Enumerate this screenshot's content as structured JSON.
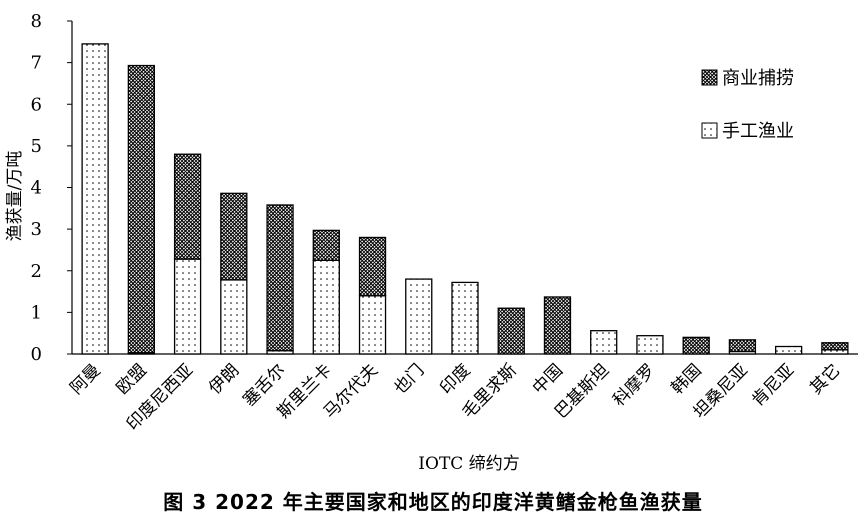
{
  "figure_caption": "图 3   2022 年主要国家和地区的印度洋黄鳍金枪鱼渔获量",
  "chart_data": {
    "type": "bar",
    "stacked": true,
    "title": "",
    "xlabel": "IOTC 缔约方",
    "ylabel": "渔获量/万吨",
    "ylim": [
      0,
      8
    ],
    "yticks": [
      0,
      1,
      2,
      3,
      4,
      5,
      6,
      7,
      8
    ],
    "grid": false,
    "legend_position": "right",
    "categories": [
      "阿曼",
      "欧盟",
      "印度尼西亚",
      "伊朗",
      "塞舌尔",
      "斯里兰卡",
      "马尔代夫",
      "也门",
      "印度",
      "毛里求斯",
      "中国",
      "巴基斯坦",
      "科摩罗",
      "韩国",
      "坦桑尼亚",
      "肯尼亚",
      "其它"
    ],
    "series": [
      {
        "name": "手工渔业",
        "pattern": "dots",
        "values": [
          7.45,
          0.03,
          2.28,
          1.78,
          0.08,
          2.25,
          1.4,
          1.8,
          1.72,
          0,
          0,
          0.56,
          0.44,
          0,
          0.06,
          0.18,
          0.1
        ]
      },
      {
        "name": "商业捕捞",
        "pattern": "crosshatch",
        "values": [
          0,
          6.9,
          2.52,
          2.08,
          3.5,
          0.72,
          1.4,
          0,
          0,
          1.1,
          1.37,
          0,
          0,
          0.4,
          0.28,
          0,
          0.17
        ]
      }
    ]
  }
}
